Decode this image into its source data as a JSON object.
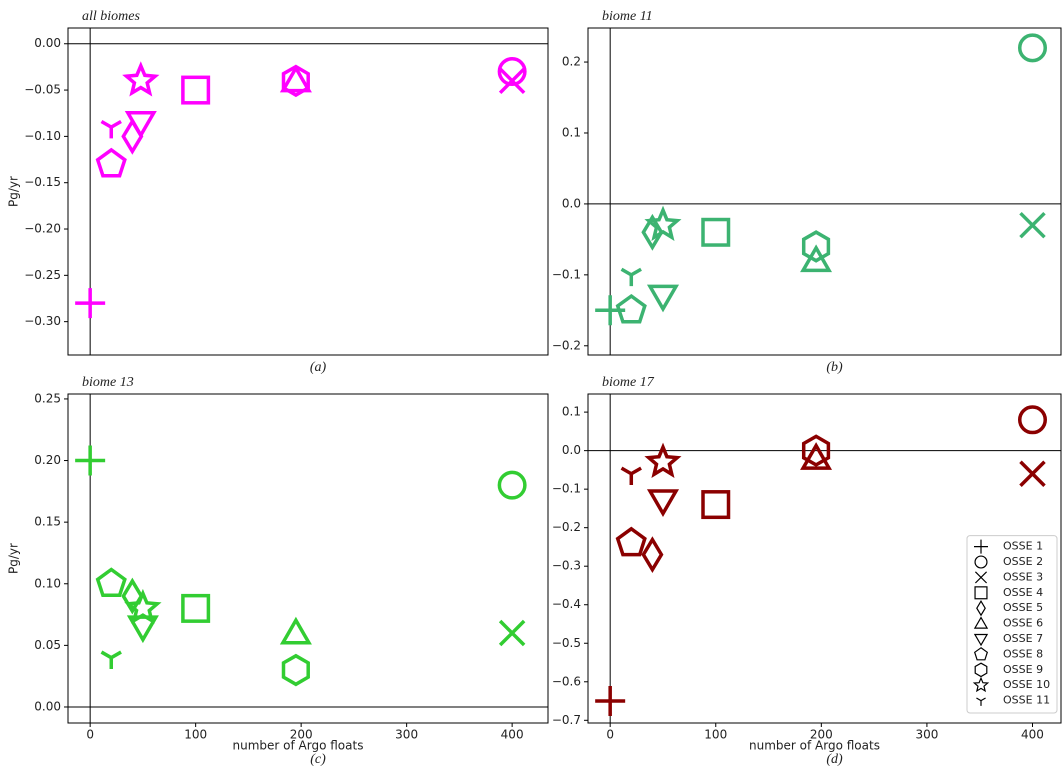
{
  "chart_data": [
    {
      "type": "scatter",
      "title": "all biomes",
      "caption": "(a)",
      "ylabel": "Pg/yr",
      "color": "#ff00ff",
      "zero_lines": true,
      "xlim": [
        -21,
        434
      ],
      "ylim": [
        -0.336,
        0.017
      ],
      "yticks": [
        {
          "value": 0,
          "label": "0.00"
        },
        {
          "value": -0.05,
          "label": "−0.05"
        },
        {
          "value": -0.1,
          "label": "−0.10"
        },
        {
          "value": -0.15,
          "label": "−0.15"
        },
        {
          "value": -0.2,
          "label": "−0.20"
        },
        {
          "value": -0.25,
          "label": "−0.25"
        },
        {
          "value": -0.3,
          "label": "−0.30"
        }
      ],
      "series": [
        {
          "marker": "plus",
          "x": [
            0
          ],
          "values": [
            -0.28
          ]
        },
        {
          "marker": "circle",
          "x": [
            400
          ],
          "values": [
            -0.03
          ]
        },
        {
          "marker": "x",
          "x": [
            400
          ],
          "values": [
            -0.04
          ]
        },
        {
          "marker": "square",
          "x": [
            100
          ],
          "values": [
            -0.05
          ]
        },
        {
          "marker": "diamond",
          "x": [
            40
          ],
          "values": [
            -0.1
          ]
        },
        {
          "marker": "triangle-up",
          "x": [
            195
          ],
          "values": [
            -0.04
          ]
        },
        {
          "marker": "triangle-down",
          "x": [
            48
          ],
          "values": [
            -0.085
          ]
        },
        {
          "marker": "pentagon",
          "x": [
            20
          ],
          "values": [
            -0.13
          ]
        },
        {
          "marker": "hexagon",
          "x": [
            195
          ],
          "values": [
            -0.04
          ]
        },
        {
          "marker": "star",
          "x": [
            48
          ],
          "values": [
            -0.04
          ]
        },
        {
          "marker": "tri-down",
          "x": [
            20
          ],
          "values": [
            -0.09
          ]
        }
      ]
    },
    {
      "type": "scatter",
      "title": "biome 11",
      "caption": "(b)",
      "color": "#3cb371",
      "zero_lines": true,
      "xlim": [
        -21,
        427
      ],
      "ylim": [
        -0.213,
        0.248
      ],
      "yticks": [
        {
          "value": 0.2,
          "label": "0.2"
        },
        {
          "value": 0.1,
          "label": "0.1"
        },
        {
          "value": 0,
          "label": "0.0"
        },
        {
          "value": -0.1,
          "label": "−0.1"
        },
        {
          "value": -0.2,
          "label": "−0.2"
        }
      ],
      "series": [
        {
          "marker": "plus",
          "x": [
            0
          ],
          "values": [
            -0.15
          ]
        },
        {
          "marker": "circle",
          "x": [
            400
          ],
          "values": [
            0.22
          ]
        },
        {
          "marker": "x",
          "x": [
            400
          ],
          "values": [
            -0.03
          ]
        },
        {
          "marker": "square",
          "x": [
            100
          ],
          "values": [
            -0.04
          ]
        },
        {
          "marker": "diamond",
          "x": [
            40
          ],
          "values": [
            -0.04
          ]
        },
        {
          "marker": "triangle-up",
          "x": [
            195
          ],
          "values": [
            -0.08
          ]
        },
        {
          "marker": "triangle-down",
          "x": [
            50
          ],
          "values": [
            -0.13
          ]
        },
        {
          "marker": "pentagon",
          "x": [
            20
          ],
          "values": [
            -0.15
          ]
        },
        {
          "marker": "hexagon",
          "x": [
            195
          ],
          "values": [
            -0.06
          ]
        },
        {
          "marker": "star",
          "x": [
            50
          ],
          "values": [
            -0.03
          ]
        },
        {
          "marker": "tri-down",
          "x": [
            20
          ],
          "values": [
            -0.1
          ]
        }
      ]
    },
    {
      "type": "scatter",
      "title": "biome 13",
      "caption": "(c)",
      "ylabel": "Pg/yr",
      "xlabel": "number of Argo floats",
      "color": "#32cd32",
      "zero_lines": true,
      "xlim": [
        -21,
        434
      ],
      "ylim": [
        -0.013,
        0.254
      ],
      "xticks": [
        0,
        100,
        200,
        300,
        400
      ],
      "yticks": [
        {
          "value": 0.25,
          "label": "0.25"
        },
        {
          "value": 0.2,
          "label": "0.20"
        },
        {
          "value": 0.15,
          "label": "0.15"
        },
        {
          "value": 0.1,
          "label": "0.10"
        },
        {
          "value": 0.05,
          "label": "0.05"
        },
        {
          "value": 0,
          "label": "0.00"
        }
      ],
      "series": [
        {
          "marker": "plus",
          "x": [
            0
          ],
          "values": [
            0.2
          ]
        },
        {
          "marker": "circle",
          "x": [
            400
          ],
          "values": [
            0.18
          ]
        },
        {
          "marker": "x",
          "x": [
            400
          ],
          "values": [
            0.06
          ]
        },
        {
          "marker": "square",
          "x": [
            100
          ],
          "values": [
            0.08
          ]
        },
        {
          "marker": "diamond",
          "x": [
            40
          ],
          "values": [
            0.09
          ]
        },
        {
          "marker": "triangle-up",
          "x": [
            195
          ],
          "values": [
            0.06
          ]
        },
        {
          "marker": "triangle-down",
          "x": [
            50
          ],
          "values": [
            0.065
          ]
        },
        {
          "marker": "pentagon",
          "x": [
            20
          ],
          "values": [
            0.1
          ]
        },
        {
          "marker": "hexagon",
          "x": [
            195
          ],
          "values": [
            0.03
          ]
        },
        {
          "marker": "star",
          "x": [
            50
          ],
          "values": [
            0.08
          ]
        },
        {
          "marker": "tri-down",
          "x": [
            20
          ],
          "values": [
            0.04
          ]
        }
      ]
    },
    {
      "type": "scatter",
      "title": "biome 17",
      "caption": "(d)",
      "xlabel": "number of Argo floats",
      "color": "#8b0000",
      "zero_lines": true,
      "legend": "lower right",
      "xlim": [
        -21,
        427
      ],
      "ylim": [
        -0.707,
        0.147
      ],
      "xticks": [
        0,
        100,
        200,
        300,
        400
      ],
      "yticks": [
        {
          "value": 0.1,
          "label": "0.1"
        },
        {
          "value": 0,
          "label": "0.0"
        },
        {
          "value": -0.1,
          "label": "−0.1"
        },
        {
          "value": -0.2,
          "label": "−0.2"
        },
        {
          "value": -0.3,
          "label": "−0.3"
        },
        {
          "value": -0.4,
          "label": "−0.4"
        },
        {
          "value": -0.5,
          "label": "−0.5"
        },
        {
          "value": -0.6,
          "label": "−0.6"
        },
        {
          "value": -0.7,
          "label": "−0.7"
        }
      ],
      "series": [
        {
          "name": "OSSE 1",
          "marker": "plus",
          "x": [
            0
          ],
          "values": [
            -0.65
          ]
        },
        {
          "name": "OSSE 2",
          "marker": "circle",
          "x": [
            400
          ],
          "values": [
            0.08
          ]
        },
        {
          "name": "OSSE 3",
          "marker": "x",
          "x": [
            400
          ],
          "values": [
            -0.06
          ]
        },
        {
          "name": "OSSE 4",
          "marker": "square",
          "x": [
            100
          ],
          "values": [
            -0.14
          ]
        },
        {
          "name": "OSSE 5",
          "marker": "diamond",
          "x": [
            40
          ],
          "values": [
            -0.27
          ]
        },
        {
          "name": "OSSE 6",
          "marker": "triangle-up",
          "x": [
            195
          ],
          "values": [
            -0.02
          ]
        },
        {
          "name": "OSSE 7",
          "marker": "triangle-down",
          "x": [
            50
          ],
          "values": [
            -0.13
          ]
        },
        {
          "name": "OSSE 8",
          "marker": "pentagon",
          "x": [
            20
          ],
          "values": [
            -0.24
          ]
        },
        {
          "name": "OSSE 9",
          "marker": "hexagon",
          "x": [
            195
          ],
          "values": [
            0
          ]
        },
        {
          "name": "OSSE 10",
          "marker": "star",
          "x": [
            50
          ],
          "values": [
            -0.03
          ]
        },
        {
          "name": "OSSE 11",
          "marker": "tri-down",
          "x": [
            20
          ],
          "values": [
            -0.06
          ]
        }
      ]
    }
  ]
}
